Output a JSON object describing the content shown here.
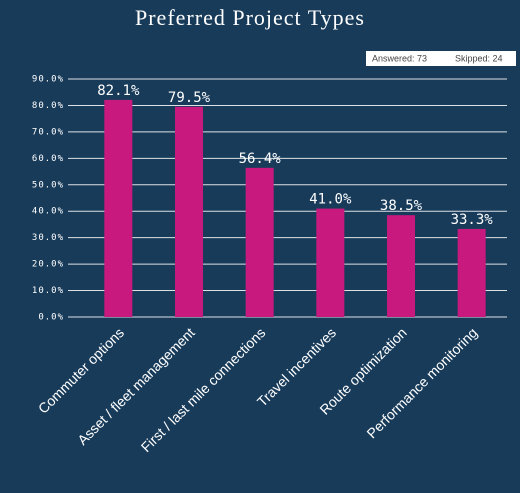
{
  "chart_data": {
    "type": "bar",
    "title": "Preferred Project Types",
    "annotations": [
      "Answered: 73",
      "Skipped: 24"
    ],
    "categories": [
      "Commuter options",
      "Asset / fleet management",
      "First / last mile connections",
      "Travel incentives",
      "Route optimization",
      "Performance monitoring"
    ],
    "values": [
      82.1,
      79.5,
      56.4,
      41.0,
      38.5,
      33.3
    ],
    "value_labels": [
      "82.1%",
      "79.5%",
      "56.4%",
      "41.0%",
      "38.5%",
      "33.3%"
    ],
    "color": "#c8197f",
    "ylim": [
      0,
      90
    ],
    "yticks": [
      {
        "value": 0,
        "label": "0.0%"
      },
      {
        "value": 10,
        "label": "10.0%"
      },
      {
        "value": 20,
        "label": "20.0%"
      },
      {
        "value": 30,
        "label": "30.0%"
      },
      {
        "value": 40,
        "label": "40.0%"
      },
      {
        "value": 50,
        "label": "50.0%"
      },
      {
        "value": 60,
        "label": "60.0%"
      },
      {
        "value": 70,
        "label": "70.0%"
      },
      {
        "value": 80,
        "label": "80.0%"
      },
      {
        "value": 90,
        "label": "90.0%"
      }
    ],
    "grid": true
  }
}
